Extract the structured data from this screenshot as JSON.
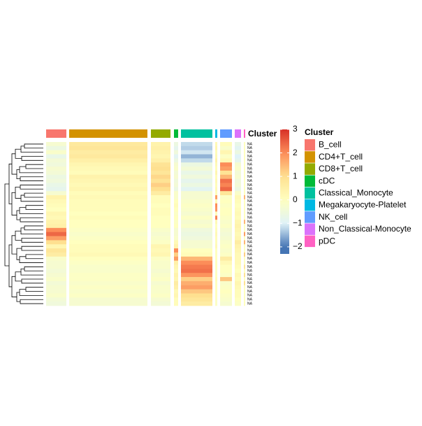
{
  "chart_data": {
    "type": "heatmap",
    "annotation_title": "Cluster",
    "legend_title": "Cluster",
    "clusters": [
      {
        "name": "B_cell",
        "color": "#f8766d"
      },
      {
        "name": "CD4+T_cell",
        "color": "#d39200"
      },
      {
        "name": "CD8+T_cell",
        "color": "#93aa00"
      },
      {
        "name": "cDC",
        "color": "#00ba38"
      },
      {
        "name": "Classical_Monocyte",
        "color": "#00c19f"
      },
      {
        "name": "Megakaryocyte-Platelet",
        "color": "#00b9e3"
      },
      {
        "name": "NK_cell",
        "color": "#619cff"
      },
      {
        "name": "Non_Classical-Monocyte",
        "color": "#db72fb"
      },
      {
        "name": "pDC",
        "color": "#ff61c3"
      }
    ],
    "row_labels": [
      "NA",
      "NA",
      "NA",
      "NA",
      "NA",
      "NA",
      "NA",
      "NA",
      "NA",
      "NA",
      "NA",
      "NA",
      "NA",
      "NA",
      "NA",
      "NA",
      "NA",
      "NA",
      "NA",
      "NA",
      "NA",
      "NA",
      "NA",
      "NA",
      "NA",
      "NA",
      "NA",
      "NA",
      "NA",
      "NA",
      "NA",
      "NA",
      "NA",
      "NA",
      "NA",
      "NA",
      "NA",
      "NA",
      "NA",
      "NA"
    ],
    "values": [
      [
        -0.3,
        0.7,
        0.4,
        -0.6,
        -1.2,
        0.2,
        0.1,
        -0.7,
        0
      ],
      [
        -0.6,
        0.8,
        0.5,
        -0.8,
        -1.3,
        0.3,
        -0.2,
        -0.9,
        0
      ],
      [
        -0.2,
        0.6,
        0.4,
        -0.5,
        -1.1,
        0.1,
        0.3,
        -0.6,
        0
      ],
      [
        -0.7,
        0.7,
        0.3,
        -0.9,
        -1.5,
        0.2,
        -0.1,
        -1.0,
        0
      ],
      [
        -0.4,
        0.5,
        0.5,
        -0.6,
        -1.2,
        0.4,
        0.2,
        -0.8,
        0
      ],
      [
        -0.5,
        0.3,
        0.9,
        -0.3,
        -0.6,
        0.2,
        2.0,
        -0.3,
        0
      ],
      [
        -0.3,
        0.2,
        1.0,
        -0.2,
        -0.4,
        0.1,
        1.8,
        -0.2,
        0
      ],
      [
        -0.4,
        0.1,
        0.8,
        -0.4,
        -0.7,
        0.3,
        0.9,
        -0.4,
        0
      ],
      [
        -0.6,
        0.4,
        1.1,
        -0.3,
        -0.5,
        0.1,
        1.5,
        -0.3,
        0
      ],
      [
        -0.5,
        0.3,
        0.9,
        -0.5,
        -0.8,
        0.2,
        2.3,
        -0.5,
        0
      ],
      [
        -0.7,
        0.2,
        1.2,
        -0.4,
        -0.6,
        0.1,
        2.1,
        -0.4,
        0
      ],
      [
        -0.8,
        0.3,
        1.0,
        -0.6,
        -0.9,
        0.2,
        2.4,
        -0.6,
        0
      ],
      [
        -0.3,
        0.1,
        0.6,
        -0.2,
        -0.3,
        0.1,
        0.8,
        -0.2,
        0
      ],
      [
        0.4,
        0.2,
        0.1,
        -0.2,
        -0.3,
        1.8,
        -0.1,
        0.2,
        1.5
      ],
      [
        0.2,
        0.1,
        0.1,
        0,
        -0.2,
        0.2,
        0,
        0.1,
        0
      ],
      [
        0.1,
        0.1,
        0,
        0.1,
        -0.1,
        2.0,
        -0.1,
        0,
        0
      ],
      [
        0,
        0.1,
        0.1,
        0,
        -0.2,
        1.9,
        0,
        0.1,
        0
      ],
      [
        0.3,
        0,
        0.1,
        -0.1,
        -0.3,
        0.1,
        0,
        0.2,
        0
      ],
      [
        0.2,
        0.1,
        0,
        0,
        -0.1,
        2.1,
        -0.1,
        0.1,
        0
      ],
      [
        0.4,
        0,
        0,
        -0.1,
        -0.3,
        0.2,
        -0.2,
        0.3,
        1.5
      ],
      [
        0.5,
        0,
        0,
        0,
        -0.2,
        0,
        -0.1,
        0.4,
        0
      ],
      [
        2.0,
        -0.1,
        -0.2,
        -0.3,
        -0.5,
        0.1,
        -0.3,
        0.3,
        0
      ],
      [
        2.4,
        -0.2,
        -0.3,
        -0.3,
        -0.6,
        0.2,
        -0.4,
        0.2,
        1.8
      ],
      [
        1.8,
        -0.1,
        -0.2,
        -0.2,
        -0.5,
        0.1,
        -0.3,
        0.3,
        0
      ],
      [
        1.0,
        0,
        -0.1,
        0.2,
        -0.3,
        0.1,
        -0.2,
        0.6,
        1.5
      ],
      [
        0.3,
        0.1,
        0.3,
        0.4,
        -0.3,
        0.2,
        -0.1,
        0.4,
        0
      ],
      [
        0.8,
        0.1,
        0.2,
        2.0,
        0,
        0,
        -0.2,
        0.3,
        0
      ],
      [
        0.6,
        0.2,
        0.3,
        1.2,
        0.1,
        0,
        -0.1,
        0.2,
        1.2
      ],
      [
        -0.2,
        0,
        -0.1,
        1.8,
        1.5,
        0,
        0.6,
        0.2,
        0
      ],
      [
        -0.3,
        -0.1,
        -0.2,
        0.5,
        2.0,
        0,
        0.2,
        0.2,
        0
      ],
      [
        -0.3,
        -0.2,
        -0.2,
        0.3,
        2.2,
        0,
        0,
        0.1,
        0.8
      ],
      [
        -0.4,
        -0.2,
        -0.3,
        0.2,
        2.3,
        -0.1,
        0,
        0,
        0
      ],
      [
        -0.3,
        -0.1,
        -0.2,
        0.4,
        1.9,
        0,
        -0.1,
        0.2,
        0.9
      ],
      [
        -0.2,
        -0.1,
        -0.1,
        0.3,
        1.2,
        0.1,
        1.3,
        0.1,
        0
      ],
      [
        -0.4,
        -0.2,
        -0.3,
        0.6,
        1.6,
        0,
        -0.2,
        0.3,
        0.9
      ],
      [
        -0.3,
        -0.1,
        -0.2,
        0.5,
        1.8,
        0,
        -0.1,
        0.2,
        0
      ],
      [
        -0.3,
        -0.2,
        -0.2,
        0.2,
        1.3,
        0,
        0,
        0.1,
        0
      ],
      [
        -0.2,
        -0.1,
        -0.1,
        0.3,
        1.0,
        0,
        -0.1,
        0.1,
        0
      ],
      [
        -0.4,
        -0.3,
        -0.3,
        0.1,
        0.8,
        -0.1,
        -0.2,
        0,
        0
      ],
      [
        -0.5,
        -0.3,
        -0.4,
        0.1,
        0.6,
        -0.1,
        -0.3,
        -0.1,
        0
      ]
    ],
    "zlim": [
      -2.3,
      3
    ],
    "zticks": [
      {
        "value": -2,
        "label": "−2"
      },
      {
        "value": -1,
        "label": "−1"
      },
      0,
      1,
      2,
      3
    ],
    "palette": [
      "#4575b4",
      "#e0f3f8",
      "#ffffbf",
      "#fee090",
      "#fc8d59",
      "#d73027"
    ]
  }
}
